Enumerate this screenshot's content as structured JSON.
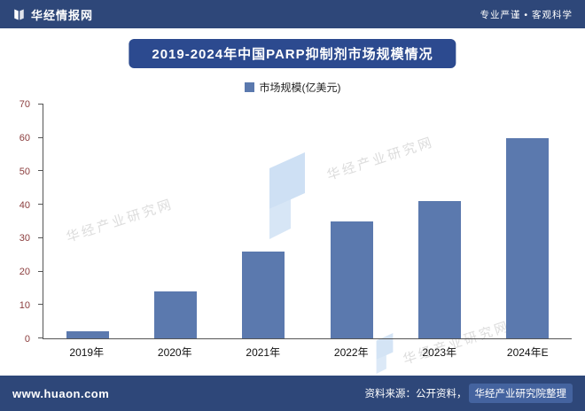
{
  "header": {
    "brand": "华经情报网",
    "slogan": "专业严谨 • 客观科学"
  },
  "title_banner": "2019-2024年中国PARP抑制剂市场规模情况",
  "legend_label": "市场规模(亿美元)",
  "chart_data": {
    "type": "bar",
    "title": "2019-2024年中国PARP抑制剂市场规模情况",
    "categories": [
      "2019年",
      "2020年",
      "2021年",
      "2022年",
      "2023年",
      "2024年E"
    ],
    "values": [
      2,
      14,
      26,
      35,
      41,
      60
    ],
    "series_name": "市场规模(亿美元)",
    "xlabel": "",
    "ylabel": "",
    "ylim": [
      0,
      70
    ],
    "yticks": [
      0,
      10,
      20,
      30,
      40,
      50,
      60,
      70
    ],
    "grid": false,
    "legend_position": "top",
    "bar_color": "#5b79ae"
  },
  "watermark": {
    "text": "华经产业研究网"
  },
  "footer": {
    "site": "www.huaon.com",
    "source_prefix": "资料来源：公开资料，",
    "source_highlight": "华经产业研究院整理"
  },
  "colors": {
    "navy": "#2e4779",
    "banner": "#2c4a8f",
    "bar": "#5b79ae",
    "ytick": "#8b3d3d",
    "highlight": "#44639f",
    "wmblue": "#c9ddf3"
  }
}
